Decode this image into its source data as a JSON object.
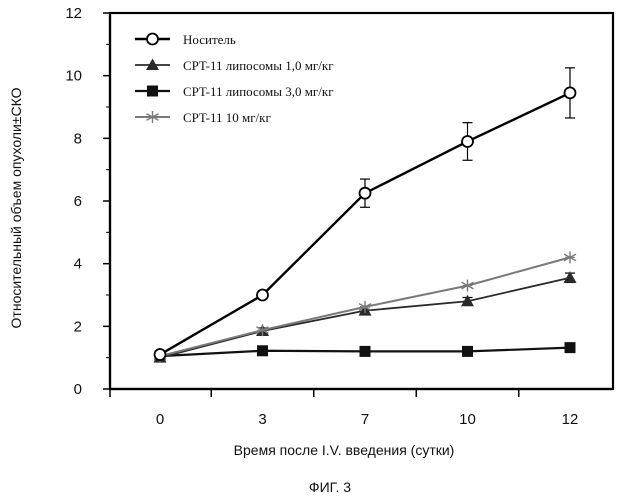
{
  "figure_caption": "ФИГ. 3",
  "chart_data": {
    "type": "line",
    "xlabel": "Время после I.V. введения (сутки)",
    "ylabel": "Относительный объем опухоли±СКО",
    "categories": [
      "0",
      "3",
      "7",
      "10",
      "12"
    ],
    "ylim": [
      0,
      12
    ],
    "yticks": [
      0,
      2,
      4,
      6,
      8,
      10,
      12
    ],
    "legend_position": "top-left",
    "grid": false,
    "series": [
      {
        "name": "Носитель",
        "values": [
          1.1,
          3.0,
          6.25,
          7.9,
          9.45
        ],
        "errors": [
          0,
          0.12,
          0.45,
          0.6,
          0.8
        ],
        "color": "#000000",
        "marker": "open-circle",
        "line_width": 2.4
      },
      {
        "name": "CPT-11 липосомы 1,0 мг/кг",
        "values": [
          1.0,
          1.85,
          2.5,
          2.8,
          3.55
        ],
        "errors": [
          0,
          0.1,
          0.12,
          0.12,
          0.15
        ],
        "color": "#2a2a2a",
        "marker": "triangle",
        "line_width": 1.8
      },
      {
        "name": "CPT-11 липосомы 3,0 мг/кг",
        "values": [
          1.05,
          1.22,
          1.2,
          1.2,
          1.32
        ],
        "errors": [
          0,
          0,
          0,
          0,
          0
        ],
        "color": "#111111",
        "marker": "square",
        "line_width": 2.2
      },
      {
        "name": "CPT-11 10 мг/кг",
        "values": [
          1.05,
          1.88,
          2.62,
          3.3,
          4.2
        ],
        "errors": [
          0,
          0,
          0,
          0,
          0
        ],
        "color": "#7a7a7a",
        "marker": "asterisk",
        "line_width": 2.0
      }
    ]
  }
}
